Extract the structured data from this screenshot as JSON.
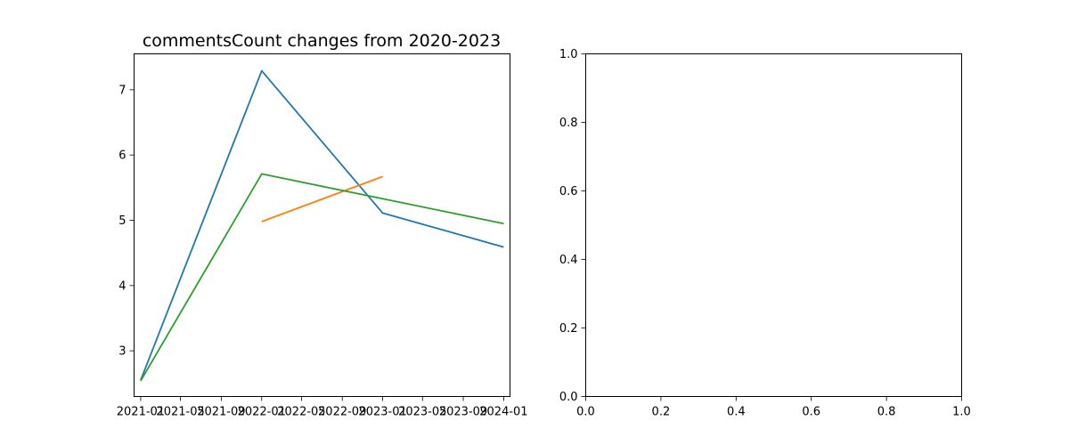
{
  "chart_data": [
    {
      "type": "line",
      "title": "commentsCount changes from 2020-2023",
      "xlabel": "",
      "ylabel": "",
      "x_axis_type": "date",
      "xlim": [
        "2020-12-12",
        "2024-01-20"
      ],
      "ylim": [
        2.3,
        7.55
      ],
      "x_tick_labels": [
        "2021-01",
        "2021-05",
        "2021-09",
        "2022-01",
        "2022-05",
        "2022-09",
        "2023-01",
        "2023-05",
        "2023-09",
        "2024-01"
      ],
      "x_tick_dates": [
        "2021-01-01",
        "2021-05-01",
        "2021-09-01",
        "2022-01-01",
        "2022-05-01",
        "2022-09-01",
        "2023-01-01",
        "2023-05-01",
        "2023-09-01",
        "2024-01-01"
      ],
      "y_ticks": [
        3,
        4,
        5,
        6,
        7
      ],
      "grid": false,
      "series": [
        {
          "color": "#1f77b4",
          "x": [
            "2021-01-01",
            "2022-01-01",
            "2023-01-01",
            "2024-01-01"
          ],
          "y": [
            2.55,
            7.29,
            5.11,
            4.59
          ]
        },
        {
          "color": "#ff7f0e",
          "x": [
            "2022-01-01",
            "2023-01-01"
          ],
          "y": [
            4.98,
            5.67
          ]
        },
        {
          "color": "#2ca02c",
          "x": [
            "2021-01-01",
            "2022-01-01",
            "2024-01-01"
          ],
          "y": [
            2.54,
            5.71,
            4.95
          ]
        }
      ]
    },
    {
      "type": "line",
      "title": "",
      "xlabel": "",
      "ylabel": "",
      "xlim": [
        0.0,
        1.0
      ],
      "ylim": [
        0.0,
        1.0
      ],
      "x_tick_labels": [
        "0.0",
        "0.2",
        "0.4",
        "0.6",
        "0.8",
        "1.0"
      ],
      "y_tick_labels": [
        "0.0",
        "0.2",
        "0.4",
        "0.6",
        "0.8",
        "1.0"
      ],
      "grid": false,
      "series": []
    }
  ]
}
